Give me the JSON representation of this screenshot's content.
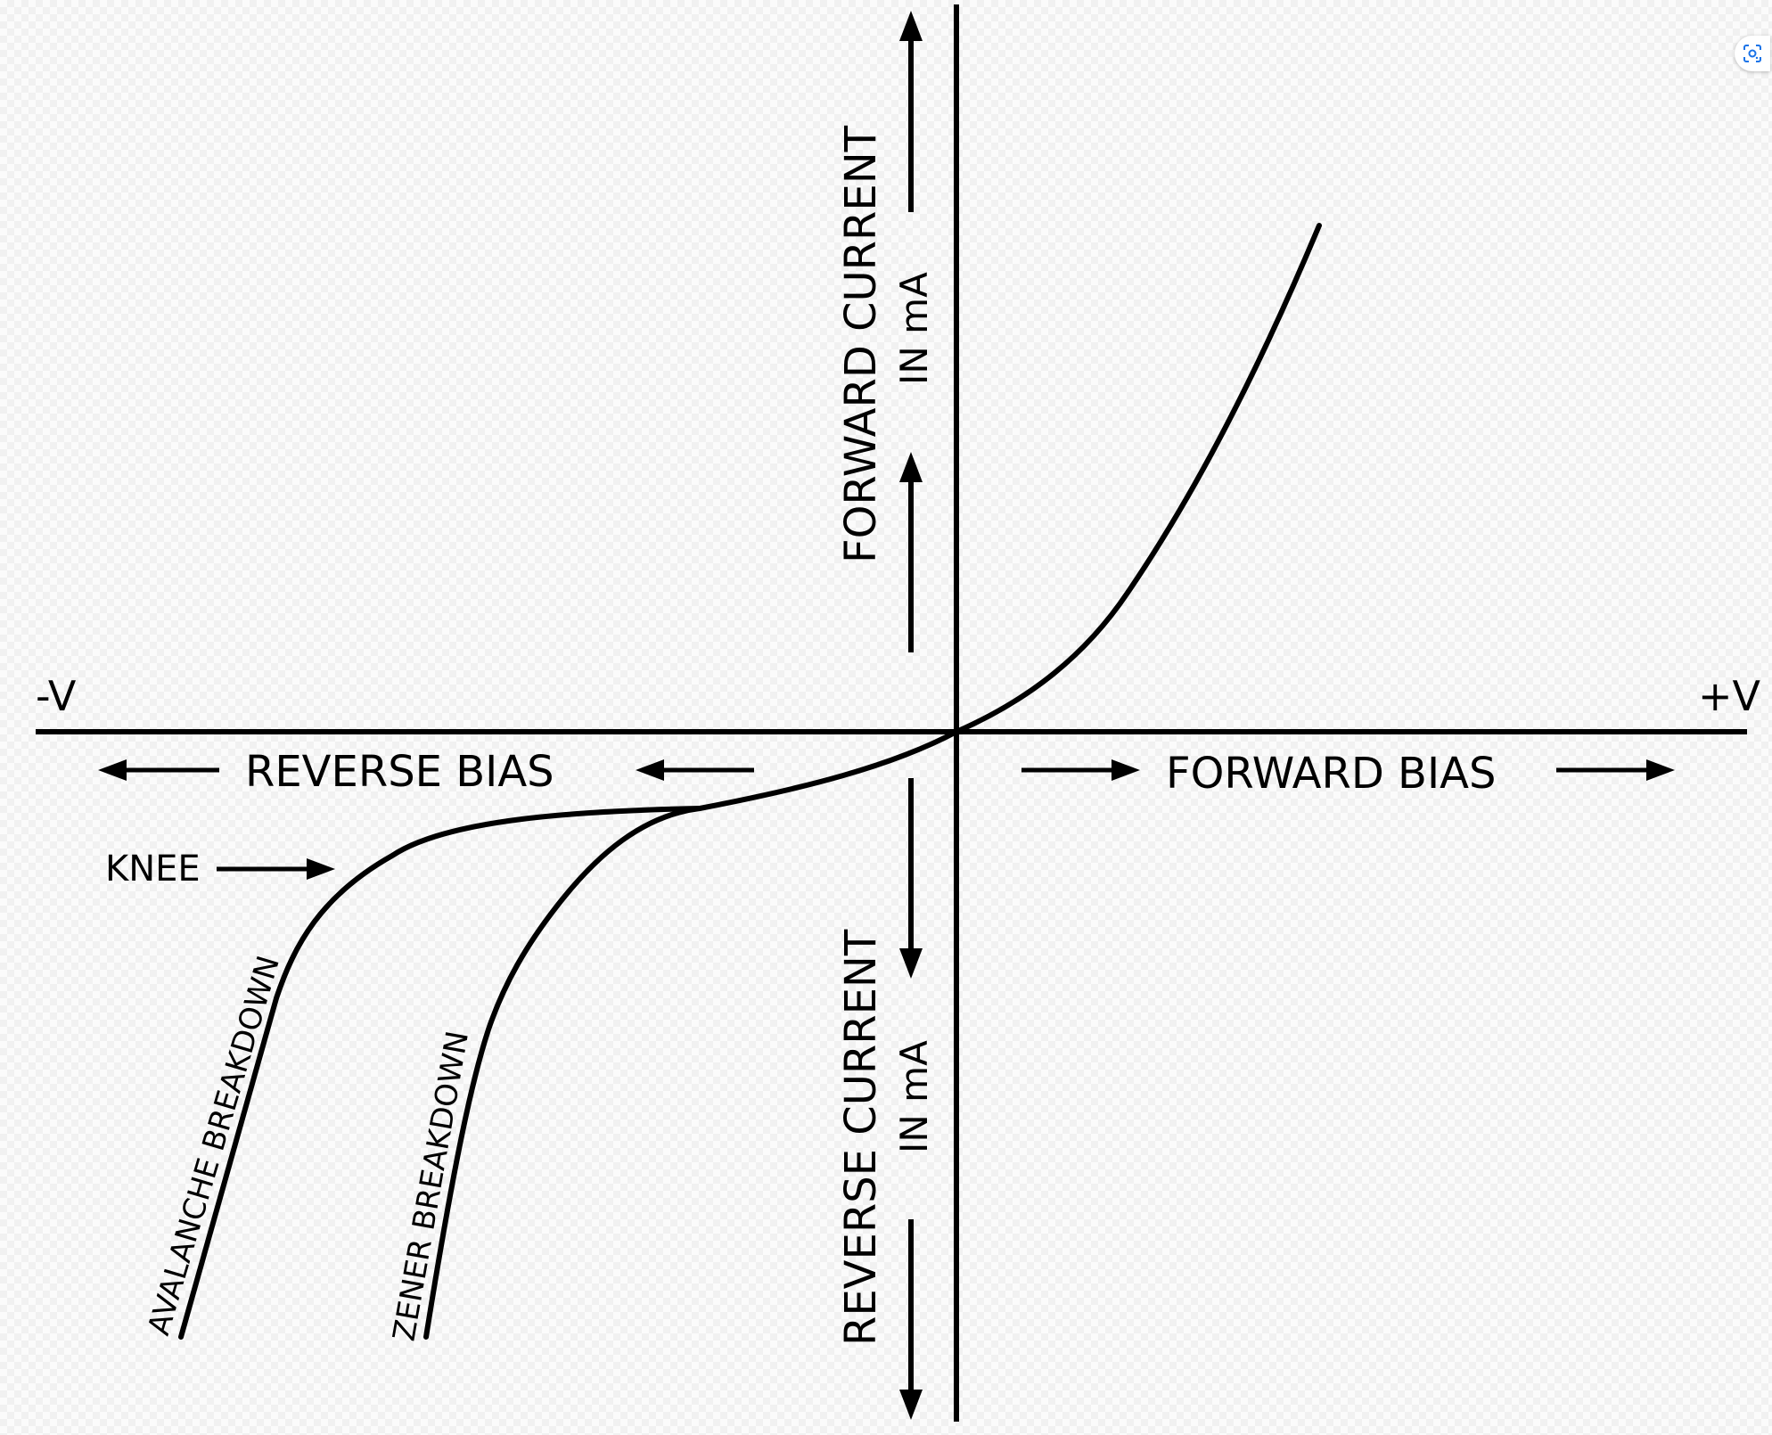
{
  "diagram": {
    "axis_labels": {
      "neg_v": "-V",
      "pos_v": "+V",
      "forward_current": "FORWARD CURRENT",
      "forward_current_unit": "IN mA",
      "reverse_current": "REVERSE CURRENT",
      "reverse_current_unit": "IN mA",
      "reverse_bias": "REVERSE BIAS",
      "forward_bias": "FORWARD BIAS"
    },
    "annotations": {
      "knee": "KNEE",
      "avalanche_breakdown": "AVALANCHE  BREAKDOWN",
      "zener_breakdown": "ZENER  BREAKDOWN"
    },
    "colors": {
      "ink": "#000000",
      "accent": "#1a73e8"
    }
  },
  "toolbar": {
    "lens_icon": "google-lens-icon"
  }
}
